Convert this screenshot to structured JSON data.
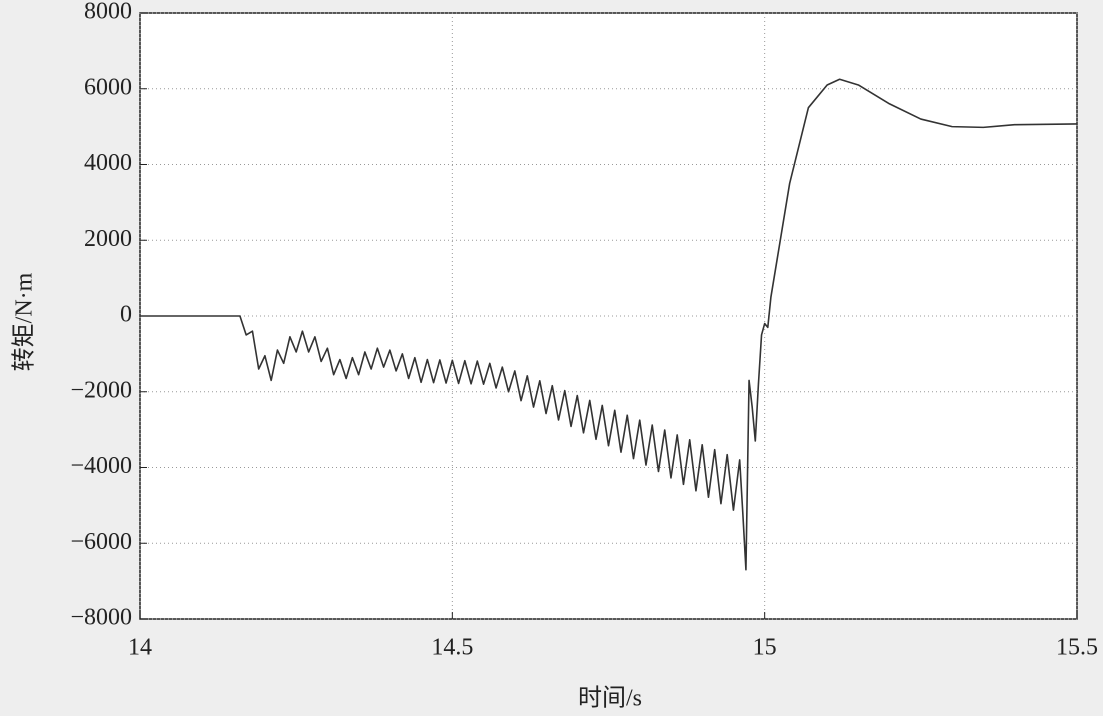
{
  "chart_data": {
    "type": "line",
    "xlabel": "时间/s",
    "ylabel": "转矩/N·m",
    "xlim": [
      14,
      15.5
    ],
    "ylim": [
      -8000,
      8000
    ],
    "xticks": [
      14,
      14.5,
      15,
      15.5
    ],
    "yticks": [
      {
        "value": -8000,
        "label": "−8000"
      },
      {
        "value": -6000,
        "label": "−6000"
      },
      {
        "value": -4000,
        "label": "−4000"
      },
      {
        "value": -2000,
        "label": "−2000"
      },
      0,
      2000,
      4000,
      6000,
      8000
    ],
    "grid": true,
    "x": [
      14,
      14.15,
      14.16,
      14.17,
      14.18,
      14.19,
      14.2,
      14.21,
      14.22,
      14.23,
      14.24,
      14.25,
      14.26,
      14.27,
      14.28,
      14.29,
      14.3,
      14.31,
      14.32,
      14.33,
      14.34,
      14.35,
      14.36,
      14.37,
      14.38,
      14.39,
      14.4,
      14.41,
      14.42,
      14.43,
      14.44,
      14.45,
      14.46,
      14.47,
      14.48,
      14.49,
      14.5,
      14.51,
      14.52,
      14.53,
      14.54,
      14.55,
      14.56,
      14.57,
      14.58,
      14.59,
      14.6,
      14.61,
      14.62,
      14.63,
      14.64,
      14.65,
      14.66,
      14.67,
      14.68,
      14.69,
      14.7,
      14.71,
      14.72,
      14.73,
      14.74,
      14.75,
      14.76,
      14.77,
      14.78,
      14.79,
      14.8,
      14.81,
      14.82,
      14.83,
      14.84,
      14.85,
      14.86,
      14.87,
      14.88,
      14.89,
      14.9,
      14.91,
      14.92,
      14.93,
      14.94,
      14.95,
      14.96,
      14.965,
      14.97,
      14.975,
      14.98,
      14.985,
      14.99,
      14.995,
      15,
      15.005,
      15.01,
      15.02,
      15.04,
      15.07,
      15.1,
      15.12,
      15.15,
      15.2,
      15.25,
      15.3,
      15.35,
      15.4,
      15.5
    ],
    "series": [
      {
        "color": "#333333",
        "values": [
          0,
          0,
          0,
          -500,
          -400,
          -1400,
          -1050,
          -1700,
          -900,
          -1250,
          -550,
          -950,
          -400,
          -950,
          -550,
          -1200,
          -850,
          -1550,
          -1150,
          -1650,
          -1100,
          -1550,
          -950,
          -1400,
          -850,
          -1350,
          -900,
          -1450,
          -1000,
          -1650,
          -1100,
          -1750,
          -1150,
          -1760,
          -1160,
          -1770,
          -1170,
          -1780,
          -1180,
          -1790,
          -1190,
          -1800,
          -1250,
          -1900,
          -1350,
          -2000,
          -1450,
          -2235,
          -1580,
          -2405,
          -1710,
          -2575,
          -1840,
          -2745,
          -1970,
          -2915,
          -2100,
          -3085,
          -2230,
          -3255,
          -2360,
          -3425,
          -2490,
          -3595,
          -2620,
          -3765,
          -2750,
          -3935,
          -2880,
          -4105,
          -3010,
          -4275,
          -3140,
          -4445,
          -3270,
          -4615,
          -3400,
          -4785,
          -3530,
          -4955,
          -3660,
          -5125,
          -3800,
          -5200,
          -6700,
          -1700,
          -2400,
          -3300,
          -1800,
          -500,
          -200,
          -300,
          500,
          1500,
          3500,
          5500,
          6100,
          6250,
          6100,
          5600,
          5200,
          5000,
          4980,
          5050,
          5070
        ]
      }
    ]
  }
}
